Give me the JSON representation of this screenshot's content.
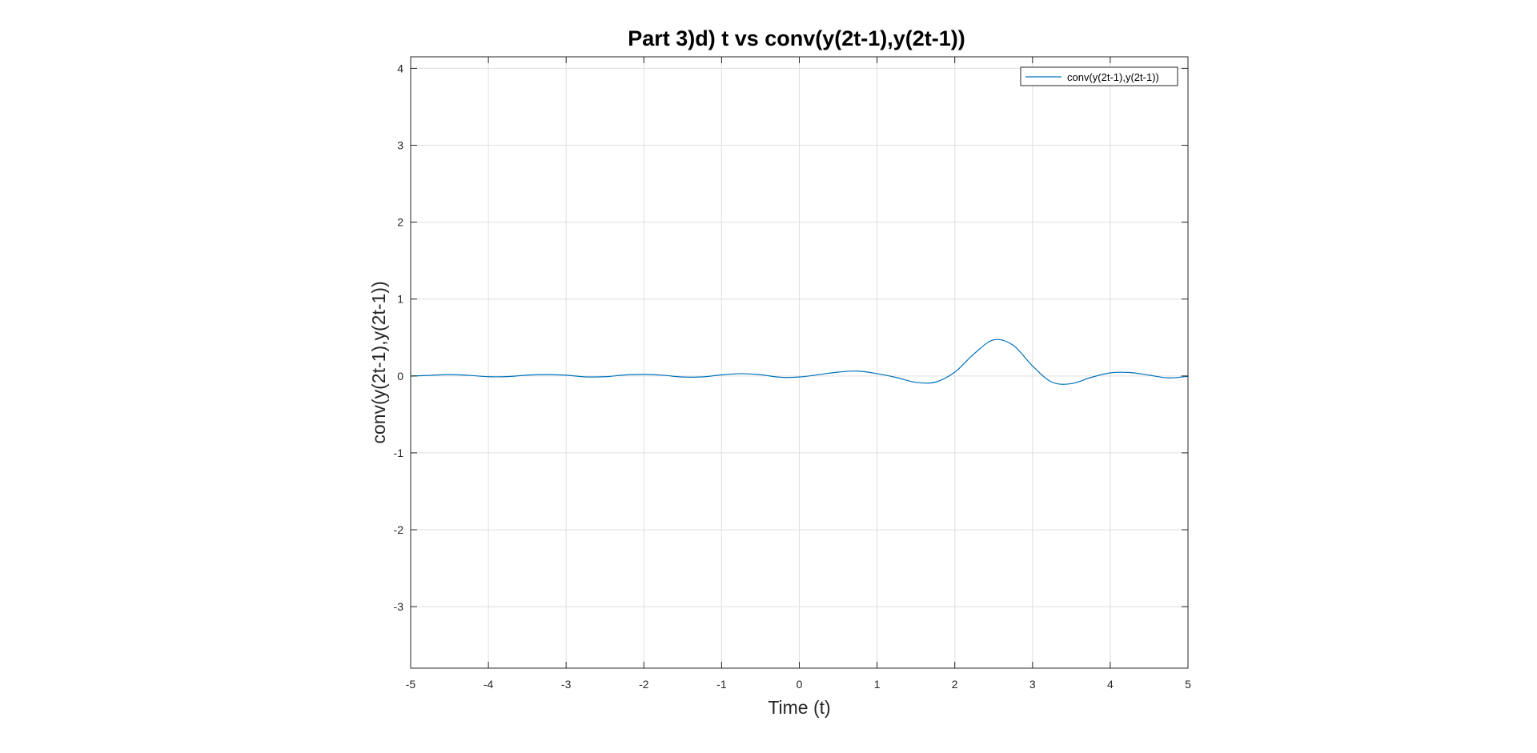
{
  "colors": {
    "background": "#ffffff",
    "axes_box": "#262626",
    "grid": "#dfdfdf",
    "series": "#0072bd"
  },
  "chart_data": {
    "type": "line",
    "title": "Part 3)d) t vs conv(y(2t-1),y(2t-1))",
    "xlabel": "Time (t)",
    "ylabel": "conv(y(2t-1),y(2t-1))",
    "xlim": [
      -5,
      5
    ],
    "ylim": [
      -3.8,
      4.15
    ],
    "xticks": [
      -5,
      -4,
      -3,
      -2,
      -1,
      0,
      1,
      2,
      3,
      4,
      5
    ],
    "yticks": [
      -3,
      -2,
      -1,
      0,
      1,
      2,
      3,
      4
    ],
    "xtick_labels": [
      "-5",
      "-4",
      "-3",
      "-2",
      "-1",
      "0",
      "1",
      "2",
      "3",
      "4",
      "5"
    ],
    "ytick_labels": [
      "-3",
      "-2",
      "-1",
      "0",
      "1",
      "2",
      "3",
      "4"
    ],
    "grid": true,
    "legend_position": "top-right",
    "series": [
      {
        "name": "conv(y(2t-1),y(2t-1))",
        "color": "#0072bd",
        "x": [
          -5,
          -4.75,
          -4.5,
          -4.25,
          -4,
          -3.75,
          -3.5,
          -3.25,
          -3,
          -2.75,
          -2.5,
          -2.25,
          -2,
          -1.75,
          -1.5,
          -1.25,
          -1,
          -0.75,
          -0.5,
          -0.25,
          0,
          0.25,
          0.5,
          0.75,
          1,
          1.25,
          1.5,
          1.75,
          2,
          2.25,
          2.5,
          2.75,
          3,
          3.25,
          3.5,
          3.75,
          4,
          4.25,
          4.5,
          4.75,
          5
        ],
        "y": [
          -0.002,
          0.008,
          0.018,
          0.008,
          -0.01,
          -0.008,
          0.011,
          0.018,
          0.01,
          -0.012,
          -0.01,
          0.012,
          0.02,
          0.009,
          -0.014,
          -0.012,
          0.014,
          0.03,
          0.016,
          -0.016,
          -0.014,
          0.017,
          0.05,
          0.063,
          0.03,
          -0.02,
          -0.083,
          -0.08,
          0.05,
          0.29,
          0.47,
          0.4,
          0.13,
          -0.08,
          -0.1,
          -0.02,
          0.04,
          0.045,
          0.01,
          -0.025,
          -0.005
        ]
      }
    ]
  }
}
